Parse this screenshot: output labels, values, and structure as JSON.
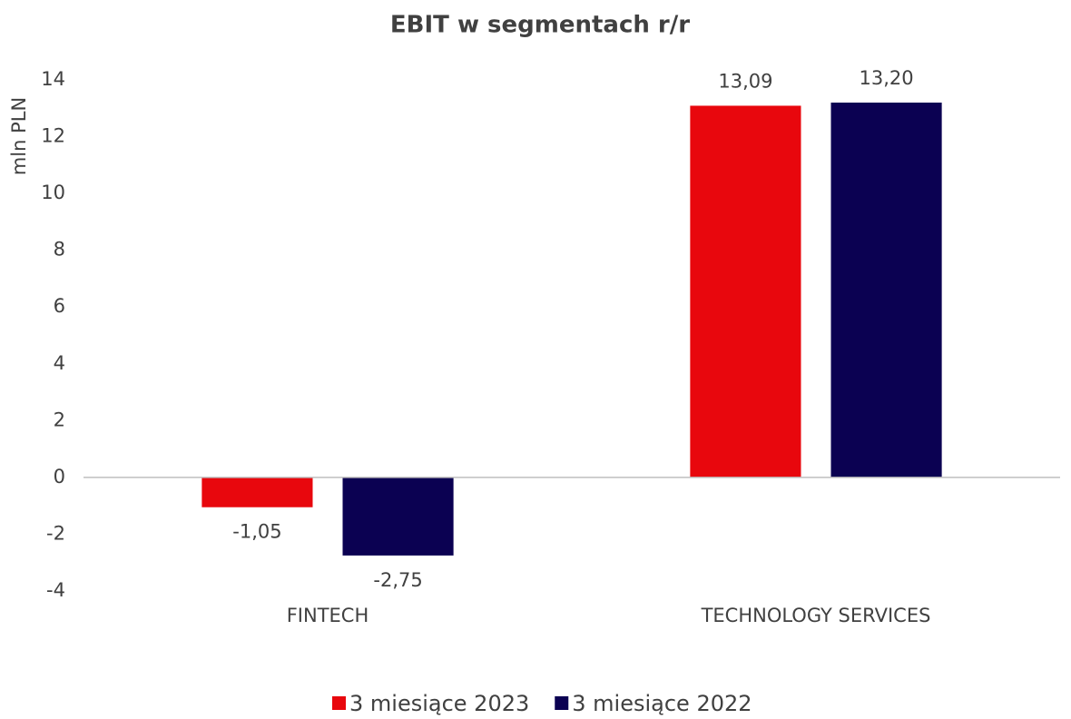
{
  "chart_data": {
    "type": "bar",
    "title": "EBIT w segmentach r/r",
    "y_label": "mln PLN",
    "categories": [
      "FINTECH",
      "TECHNOLOGY SERVICES"
    ],
    "series": [
      {
        "name": "3 miesiące 2023",
        "color": "#e8070d",
        "values": [
          -1.05,
          13.09
        ],
        "value_labels": [
          "-1,05",
          "13,09"
        ]
      },
      {
        "name": "3 miesiące 2022",
        "color": "#0b0152",
        "values": [
          -2.75,
          13.2
        ],
        "value_labels": [
          "-2,75",
          "13,20"
        ]
      }
    ],
    "ylim": [
      -4,
      14
    ],
    "yticks": [
      -4,
      -2,
      0,
      2,
      4,
      6,
      8,
      10,
      12,
      14
    ],
    "grid": false,
    "legend": "bottom"
  }
}
